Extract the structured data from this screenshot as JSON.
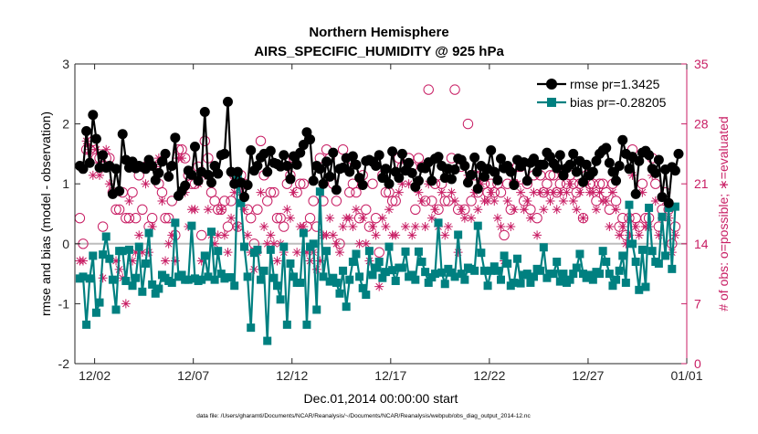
{
  "chart_data": {
    "type": "line",
    "title_line1": "Northern Hemisphere",
    "title_line2": "AIRS_SPECIFIC_HUMIDITY @ 925 hPa",
    "xlabel": "Dec.01,2014 00:00:00 start",
    "ylabel_left": "rmse and bias (model - observation)",
    "ylabel_right": "# of obs: o=possible; ∗=evaluated",
    "footer": "data file: /Users/gharamti/Documents/NCAR/Reanalysis/~/Documents/NCAR/Reanalysis/webpub/obs_diag_output_2014-12.nc",
    "x_range_days": [
      0,
      31
    ],
    "x_ticks": [
      {
        "day": 1,
        "label": "12/02"
      },
      {
        "day": 6,
        "label": "12/07"
      },
      {
        "day": 11,
        "label": "12/12"
      },
      {
        "day": 16,
        "label": "12/17"
      },
      {
        "day": 21,
        "label": "12/22"
      },
      {
        "day": 26,
        "label": "12/27"
      },
      {
        "day": 31,
        "label": "01/01"
      }
    ],
    "ylim_left": [
      -2,
      3
    ],
    "yticks_left": [
      "-2",
      "-1",
      "0",
      "1",
      "2",
      "3"
    ],
    "ylim_right": [
      0,
      35
    ],
    "yticks_right": [
      "0",
      "7",
      "14",
      "21",
      "28",
      "35"
    ],
    "legend": [
      {
        "name": "rmse pr=1.3425"
      },
      {
        "name": "bias pr=-0.28205"
      }
    ],
    "colors": {
      "rmse": "#000000",
      "bias": "#008080",
      "obs": "#c81e64",
      "zero_line": "#bdbdbd"
    },
    "series": {
      "rmse": [
        1.3,
        1.25,
        1.88,
        1.35,
        2.15,
        1.75,
        1.27,
        1.48,
        1.27,
        1.3,
        0.83,
        1.25,
        0.88,
        1.83,
        1.4,
        1.27,
        1.37,
        1.26,
        1.3,
        1.28,
        1.25,
        1.4,
        1.3,
        1.06,
        1.18,
        1.37,
        1.5,
        1.12,
        1.3,
        1.77,
        0.8,
        0.88,
        0.97,
        1.22,
        1.15,
        1.62,
        1.05,
        1.2,
        2.2,
        1.15,
        1.02,
        1.3,
        1.17,
        1.48,
        1.5,
        2.37,
        1.2,
        1.0,
        1.2,
        1.02,
        0.78,
        0.98,
        1.56,
        1.22,
        1.3,
        1.44,
        1.5,
        1.2,
        1.55,
        1.35,
        1.33,
        1.29,
        1.48,
        1.3,
        1.08,
        1.46,
        1.32,
        1.52,
        1.65,
        1.86,
        1.74,
        1.05,
        1.3,
        1.25,
        1.0,
        1.37,
        1.12,
        1.52,
        0.9,
        1.25,
        1.27,
        1.43,
        1.2,
        1.46,
        1.32,
        1.1,
        0.98,
        1.38,
        1.4,
        1.37,
        1.3,
        1.48,
        1.1,
        1.25,
        1.0,
        1.54,
        1.2,
        1.1,
        1.5,
        1.22,
        1.35,
        1.18,
        0.95,
        1.05,
        1.27,
        1.26,
        1.36,
        1.05,
        1.42,
        1.45,
        1.3,
        1.1,
        1.25,
        1.08,
        1.24,
        1.42,
        1.4,
        1.3,
        1.02,
        1.15,
        1.44,
        0.92,
        1.3,
        1.12,
        1.25,
        1.56,
        1.2,
        1.06,
        1.42,
        1.26,
        1.3,
        1.2,
        0.98,
        1.4,
        1.29,
        1.36,
        1.05,
        1.35,
        1.42,
        1.2,
        1.32,
        1.32,
        1.52,
        1.45,
        1.34,
        1.26,
        1.48,
        1.14,
        1.26,
        1.32,
        1.5,
        1.2,
        1.38,
        1.03,
        1.32,
        1.14,
        1.2,
        1.38,
        1.5,
        1.56,
        1.6,
        1.35,
        1.2,
        1.05,
        1.3,
        1.73,
        1.5,
        1.25,
        1.45,
        0.83,
        1.38,
        1.52,
        1.55,
        1.48,
        1.25,
        1.18,
        1.4,
        0.78,
        1.24,
        0.68,
        1.28,
        1.22,
        1.5
      ],
      "bias": [
        -0.58,
        -0.55,
        -1.35,
        -0.58,
        -0.2,
        -1.15,
        -0.98,
        -0.18,
        0.12,
        -0.25,
        -0.6,
        -1.1,
        -0.12,
        -0.12,
        -0.62,
        -0.1,
        -0.7,
        -0.57,
        -0.05,
        -0.8,
        -0.33,
        0.18,
        -0.68,
        -0.83,
        -0.75,
        -0.52,
        -0.57,
        -0.62,
        -0.65,
        0.35,
        -0.55,
        -0.52,
        -0.6,
        -0.6,
        0.3,
        -0.58,
        -0.62,
        -0.6,
        -0.2,
        -0.55,
        0.2,
        -0.6,
        -0.12,
        -0.5,
        -0.58,
        -0.56,
        -0.56,
        -0.7,
        1.15,
        0.68,
        -0.05,
        -0.55,
        -1.4,
        -0.15,
        -0.1,
        -0.6,
        -0.45,
        -1.62,
        -0.1,
        -0.57,
        -0.7,
        -0.93,
        -0.05,
        -1.35,
        -0.33,
        -0.55,
        -0.65,
        -0.65,
        0.18,
        -1.35,
        -0.05,
        0.0,
        -1.1,
        0.87,
        -0.55,
        -0.12,
        -0.63,
        -0.57,
        -0.65,
        -0.83,
        -0.45,
        -1.05,
        -0.6,
        -0.3,
        -0.17,
        -0.55,
        -0.74,
        -0.85,
        -0.12,
        -0.52,
        -0.4,
        -0.3,
        -0.57,
        -0.47,
        -0.05,
        -0.44,
        -0.62,
        -0.4,
        -0.4,
        -0.13,
        -0.55,
        -0.52,
        -0.6,
        -0.13,
        -0.3,
        -0.47,
        -0.65,
        -0.56,
        -0.5,
        0.35,
        -0.48,
        -0.67,
        -0.42,
        -0.48,
        -0.55,
        0.15,
        -0.5,
        -0.6,
        -0.4,
        -0.42,
        -0.45,
        0.3,
        -0.15,
        -0.45,
        -0.7,
        -0.45,
        -0.38,
        -0.45,
        -0.6,
        -0.2,
        -0.33,
        -0.7,
        -0.65,
        -0.25,
        -0.66,
        -0.52,
        -0.5,
        -0.65,
        -0.55,
        -0.42,
        -0.45,
        -0.06,
        -0.57,
        -0.5,
        -0.5,
        -0.3,
        -0.63,
        -0.5,
        -0.65,
        -0.6,
        -0.5,
        -0.4,
        -0.17,
        -0.5,
        -0.57,
        -0.52,
        -0.6,
        -0.47,
        -0.5,
        -0.12,
        -0.3,
        -0.5,
        -0.7,
        -0.6,
        -0.45,
        -0.2,
        -0.65,
        0.65,
        0.0,
        -0.3,
        -0.77,
        -0.1,
        -0.72,
        0.6,
        -0.12,
        -0.3,
        -0.33,
        0.45,
        -0.2,
        0.6,
        -0.42,
        0.62
      ],
      "obs_possible": [
        17,
        14,
        25,
        25,
        26,
        24,
        24,
        16,
        24,
        24,
        20,
        18,
        18,
        20,
        17,
        17,
        20,
        17,
        22,
        18,
        23,
        16,
        17,
        23,
        21,
        20,
        17,
        17,
        19,
        15,
        25,
        25,
        24,
        22,
        21,
        21,
        23,
        15,
        26,
        24,
        20,
        19,
        18,
        18,
        19,
        16,
        19,
        22,
        16,
        22,
        21,
        18,
        17,
        14,
        18,
        26,
        22,
        19,
        20,
        20,
        17,
        17,
        16,
        21,
        22,
        24,
        20,
        21,
        21,
        16,
        17,
        19,
        16,
        24,
        19,
        25,
        24,
        21,
        19,
        14,
        25,
        23,
        20,
        21,
        20,
        17,
        22,
        18,
        16,
        21,
        17,
        13,
        22,
        20,
        20,
        19,
        19,
        24,
        23,
        23,
        24,
        23,
        18,
        24,
        23,
        19,
        32,
        19,
        21,
        18,
        21,
        19,
        19,
        24,
        32,
        18,
        23,
        18,
        28,
        19,
        22,
        20,
        22,
        21,
        20,
        21,
        20,
        21,
        20,
        15,
        21,
        18,
        21,
        23,
        23,
        19,
        21,
        18,
        22,
        17,
        22,
        20,
        21,
        22,
        22,
        20,
        21,
        22,
        21,
        22,
        21,
        20,
        21,
        17,
        22,
        21,
        21,
        19,
        21,
        21,
        20,
        18,
        21,
        19,
        16,
        17,
        15,
        17,
        25,
        17,
        16,
        21,
        17,
        17,
        24,
        21,
        16,
        18,
        20,
        18,
        14,
        16
      ],
      "obs_evaluated": [
        12,
        12,
        26,
        25,
        22,
        25,
        22,
        10,
        25,
        21,
        20,
        12,
        11,
        10,
        7,
        19,
        12,
        13,
        15,
        13,
        21,
        13,
        16,
        23,
        24,
        19,
        12,
        14,
        15,
        12,
        24,
        24,
        20,
        16,
        18,
        18,
        21,
        12,
        22,
        18,
        15,
        14,
        15,
        18,
        15,
        13,
        17,
        20,
        16,
        20,
        18,
        15,
        13,
        11,
        13,
        20,
        16,
        14,
        15,
        14,
        12,
        14,
        13,
        18,
        17,
        20,
        13,
        16,
        16,
        13,
        12,
        13,
        11,
        12,
        15,
        15,
        17,
        15,
        14,
        13,
        16,
        17,
        17,
        16,
        18,
        14,
        17,
        14,
        12,
        16,
        15,
        9,
        17,
        16,
        18,
        15,
        15,
        20,
        21,
        16,
        21,
        15,
        16,
        20,
        19,
        16,
        21,
        17,
        18,
        16,
        20,
        15,
        16,
        20,
        19,
        13,
        18,
        17,
        22,
        17,
        20,
        18,
        21,
        19,
        19,
        20,
        19,
        17,
        16,
        12,
        19,
        16,
        18,
        21,
        20,
        18,
        19,
        17,
        20,
        15,
        20,
        18,
        20,
        19,
        20,
        18,
        20,
        19,
        20,
        21,
        19,
        18,
        20,
        17,
        21,
        20,
        20,
        18,
        20,
        19,
        19,
        16,
        20,
        18,
        15,
        16,
        14,
        15,
        22,
        16,
        15,
        20,
        16,
        16,
        22,
        19,
        15,
        17,
        19,
        17,
        13,
        15
      ]
    }
  }
}
